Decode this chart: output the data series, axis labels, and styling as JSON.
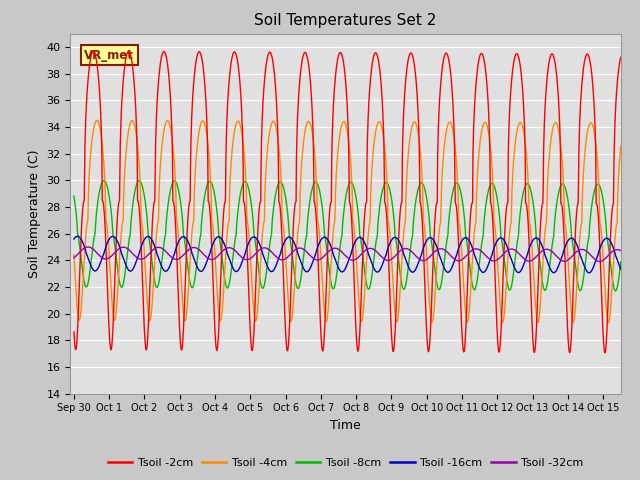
{
  "title": "Soil Temperatures Set 2",
  "xlabel": "Time",
  "ylabel": "Soil Temperature (C)",
  "ylim": [
    14,
    41
  ],
  "yticks": [
    14,
    16,
    18,
    20,
    22,
    24,
    26,
    28,
    30,
    32,
    34,
    36,
    38,
    40
  ],
  "series_colors": [
    "#ff0000",
    "#ff8800",
    "#00bb00",
    "#0000cc",
    "#9900aa"
  ],
  "series_labels": [
    "Tsoil -2cm",
    "Tsoil -4cm",
    "Tsoil -8cm",
    "Tsoil -16cm",
    "Tsoil -32cm"
  ],
  "annotation_text": "VR_met",
  "annotation_color": "#8b1a00",
  "annotation_bg": "#ffff99",
  "x_tick_labels": [
    "Sep 30",
    "Oct 1",
    "Oct 2",
    "Oct 3",
    "Oct 4",
    "Oct 5",
    "Oct 6",
    "Oct 7",
    "Oct 8",
    "Oct 9",
    "Oct 10",
    "Oct 11",
    "Oct 12",
    "Oct 13",
    "Oct 14",
    "Oct 15"
  ],
  "num_days": 15.5,
  "points_per_day": 96,
  "fig_width": 6.4,
  "fig_height": 4.8,
  "fig_dpi": 100
}
